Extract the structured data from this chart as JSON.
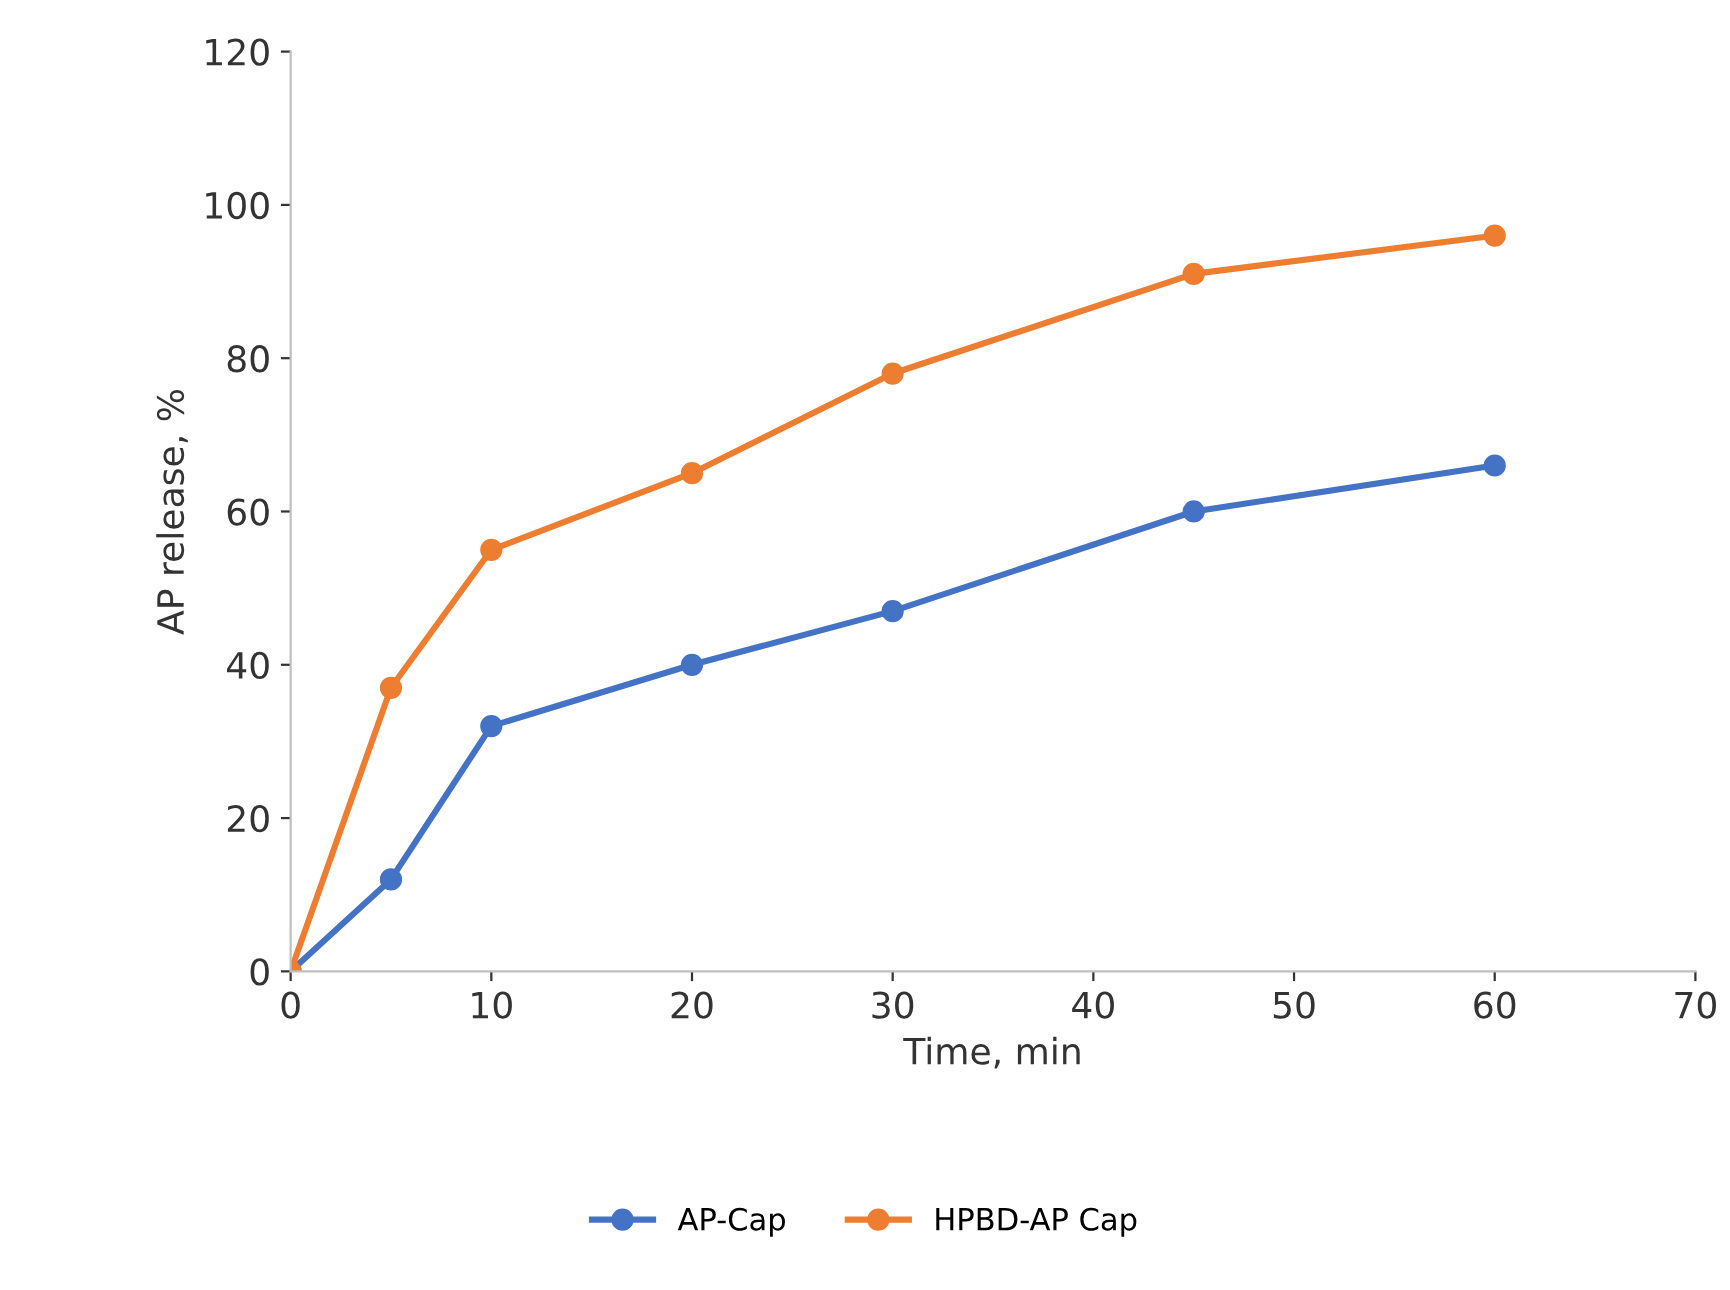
{
  "chart_data": {
    "type": "line",
    "xlabel": "Time, min",
    "ylabel": "AP release, %",
    "x": [
      0,
      5,
      10,
      20,
      30,
      45,
      60
    ],
    "series": [
      {
        "name": "AP-Cap",
        "color": "#4472c4",
        "values": [
          0,
          12,
          32,
          40,
          47,
          60,
          66
        ]
      },
      {
        "name": "HPBD-AP Cap",
        "color": "#ed7d31",
        "values": [
          0,
          37,
          55,
          65,
          78,
          91,
          96
        ]
      }
    ],
    "xlim": [
      0,
      70
    ],
    "xticks": [
      0,
      10,
      20,
      30,
      40,
      50,
      60,
      70
    ],
    "ylim": [
      0,
      120
    ],
    "yticks": [
      0,
      20,
      40,
      60,
      80,
      100,
      120
    ],
    "grid": false,
    "legend": "bottom",
    "marker": "circle",
    "line_style": "solid"
  }
}
